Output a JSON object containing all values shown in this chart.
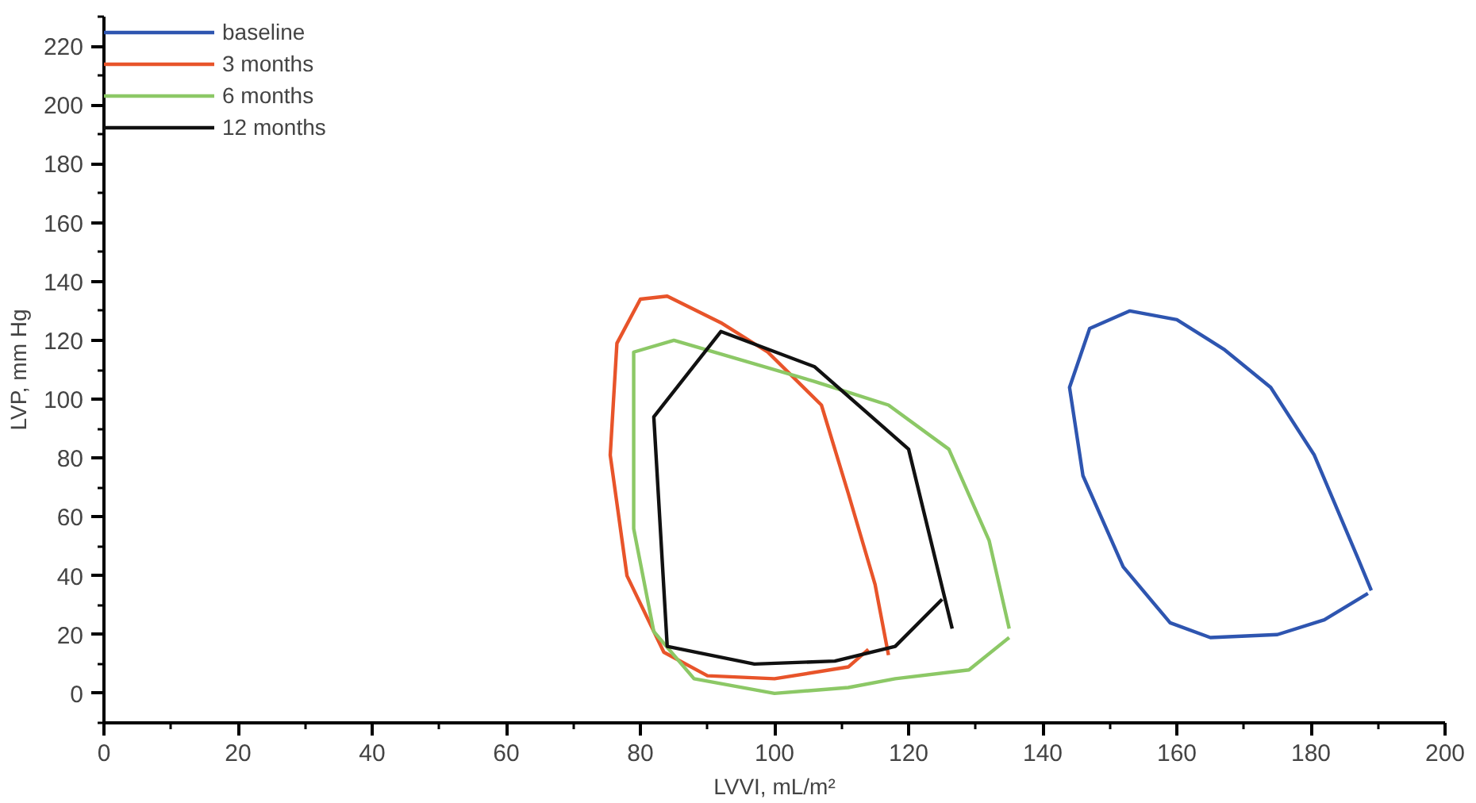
{
  "chart_data": {
    "type": "line",
    "xlabel": "LVVI, mL/m²",
    "ylabel": "LVP, mm Hg",
    "xlim": [
      0,
      200
    ],
    "ylim": [
      -10,
      230
    ],
    "xticks": [
      0,
      {
        "value": 10,
        "label": null
      },
      20,
      {
        "value": 30,
        "label": null
      },
      40,
      {
        "value": 50,
        "label": null
      },
      60,
      {
        "value": 70,
        "label": null
      },
      80,
      {
        "value": 90,
        "label": null
      },
      100,
      {
        "value": 110,
        "label": null
      },
      120,
      {
        "value": 130,
        "label": null
      },
      140,
      {
        "value": 150,
        "label": null
      },
      160,
      {
        "value": 170,
        "label": null
      },
      180,
      {
        "value": 190,
        "label": null
      },
      200
    ],
    "yticks": [
      {
        "value": -10,
        "label": null
      },
      0,
      {
        "value": 10,
        "label": null
      },
      20,
      {
        "value": 30,
        "label": null
      },
      40,
      {
        "value": 50,
        "label": null
      },
      60,
      {
        "value": 70,
        "label": null
      },
      80,
      {
        "value": 90,
        "label": null
      },
      100,
      {
        "value": 110,
        "label": null
      },
      120,
      {
        "value": 130,
        "label": null
      },
      140,
      {
        "value": 150,
        "label": null
      },
      160,
      {
        "value": 170,
        "label": null
      },
      180,
      {
        "value": 190,
        "label": null
      },
      200,
      {
        "value": 210,
        "label": null
      },
      220,
      {
        "value": 230,
        "label": null
      }
    ],
    "grid": false,
    "legend": "top left",
    "marker": "none",
    "line_style": "solid",
    "series": [
      {
        "name": "baseline",
        "color": "#2e55b0",
        "x": [
          189,
          187,
          180.5,
          174,
          167,
          160,
          153,
          147,
          144,
          146,
          152,
          159,
          165,
          175,
          182,
          188.5
        ],
        "values": [
          35,
          46,
          81,
          104,
          117,
          127,
          130,
          124,
          104,
          74,
          43,
          24,
          19,
          20,
          25,
          34
        ]
      },
      {
        "name": "3 months",
        "color": "#e8542a",
        "x": [
          117,
          115,
          111,
          107,
          103,
          99,
          92,
          84,
          80,
          76.5,
          75.5,
          78,
          83.5,
          90,
          100,
          111,
          114
        ],
        "values": [
          13,
          37,
          68,
          98,
          107,
          116,
          126,
          135,
          134,
          119,
          81,
          40,
          14,
          6,
          5,
          9,
          15
        ]
      },
      {
        "name": "6 months",
        "color": "#8cc866",
        "x": [
          135,
          132,
          126,
          117,
          106,
          94,
          85,
          79,
          79,
          82,
          88,
          100,
          111,
          118,
          129,
          135
        ],
        "values": [
          22,
          52,
          83,
          98,
          106,
          114,
          120,
          116,
          56,
          21,
          5,
          0,
          2,
          5,
          8,
          19
        ]
      },
      {
        "name": "12 months",
        "color": "#111111",
        "x": [
          126.5,
          120,
          106,
          92,
          82,
          84,
          97,
          109,
          118,
          125
        ],
        "values": [
          22,
          83,
          111,
          123,
          94,
          16,
          10,
          11,
          16,
          32
        ]
      }
    ]
  }
}
